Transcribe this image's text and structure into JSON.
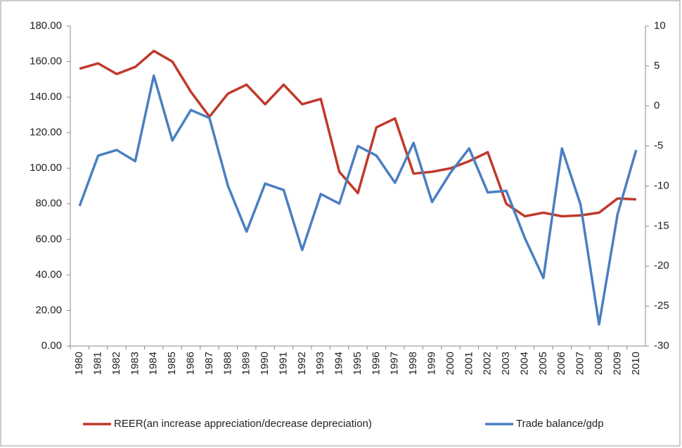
{
  "chart_data": {
    "type": "line",
    "categories": [
      "1980",
      "1981",
      "1982",
      "1983",
      "1984",
      "1985",
      "1986",
      "1987",
      "1988",
      "1989",
      "1990",
      "1991",
      "1992",
      "1993",
      "1994",
      "1995",
      "1996",
      "1997",
      "1998",
      "1999",
      "2000",
      "2001",
      "2002",
      "2003",
      "2004",
      "2005",
      "2006",
      "2007",
      "2008",
      "2009",
      "2010"
    ],
    "series": [
      {
        "name": "REER(an increase appreciation/decrease depreciation)",
        "color": "#c0392b",
        "values": [
          156,
          159,
          153,
          157,
          166,
          160,
          143,
          129,
          142,
          147,
          136,
          147,
          136,
          139,
          98,
          86,
          123,
          128,
          97,
          98,
          100,
          104,
          109,
          80,
          73,
          75,
          73,
          73.5,
          75,
          83,
          82.5
        ]
      },
      {
        "name": "Trade balance/gdp",
        "color": "#4a7fc1",
        "axis": "y2",
        "values": [
          -12.5,
          -6.2,
          -5.5,
          -6.9,
          3.8,
          -4.3,
          -0.5,
          -1.5,
          -10,
          -15.7,
          -9.7,
          -10.5,
          -18,
          -11,
          -12.2,
          -5,
          -6.2,
          -9.6,
          -4.6,
          -12,
          -8.3,
          -5.3,
          -10.8,
          -10.6,
          -16.5,
          -21.5,
          -5.3,
          -12.3,
          -27.3,
          -13.5,
          -5.5
        ]
      }
    ],
    "ylim": [
      0,
      180
    ],
    "yticks": [
      {
        "value": 0,
        "label": "0.00"
      },
      {
        "value": 20,
        "label": "20.00"
      },
      {
        "value": 40,
        "label": "40.00"
      },
      {
        "value": 60,
        "label": "60.00"
      },
      {
        "value": 80,
        "label": "80.00"
      },
      {
        "value": 100,
        "label": "100.00"
      },
      {
        "value": 120,
        "label": "120.00"
      },
      {
        "value": 140,
        "label": "140.00"
      },
      {
        "value": 160,
        "label": "160.00"
      },
      {
        "value": 180,
        "label": "180.00"
      }
    ],
    "y2lim": [
      -30,
      10
    ],
    "y2ticks": [
      -30,
      -25,
      -20,
      -15,
      -10,
      -5,
      0,
      5,
      10
    ],
    "legend": "bottom"
  }
}
